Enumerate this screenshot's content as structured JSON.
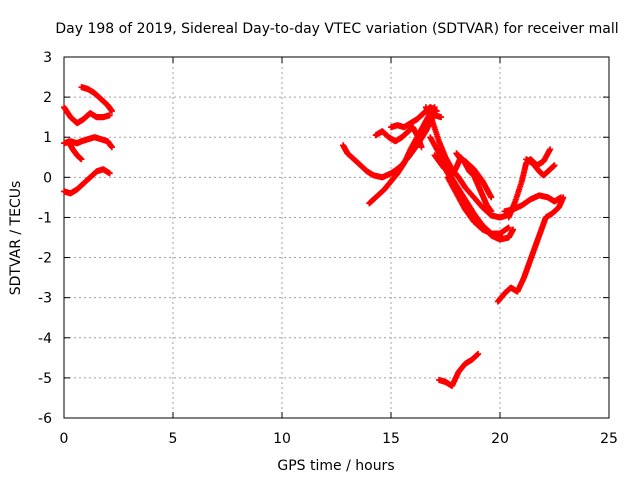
{
  "chart_data": {
    "type": "scatter",
    "title": "Day 198 of 2019, Sidereal Day-to-day VTEC variation (SDTVAR) for receiver mall",
    "xlabel": "GPS time / hours",
    "ylabel": "SDTVAR / TECUs",
    "xlim": [
      0,
      25
    ],
    "ylim": [
      -6,
      3
    ],
    "xticks": [
      "0",
      "5",
      "10",
      "15",
      "20",
      "25"
    ],
    "yticks": [
      "3",
      "2",
      "1",
      "0",
      "-1",
      "-2",
      "-3",
      "-4",
      "-5",
      "-6"
    ],
    "grid": true,
    "marker": "plus",
    "series": [
      {
        "name": "SDTVAR",
        "color": "#ff0000",
        "tracks": [
          {
            "x": [
              0.0,
              0.3,
              0.6,
              0.9,
              1.2,
              1.5,
              1.8,
              2.1
            ],
            "y": [
              1.75,
              1.5,
              1.35,
              1.45,
              1.6,
              1.5,
              1.5,
              1.55
            ]
          },
          {
            "x": [
              0.8,
              1.1,
              1.4,
              1.7,
              2.0,
              2.2
            ],
            "y": [
              2.25,
              2.2,
              2.1,
              1.95,
              1.8,
              1.65
            ]
          },
          {
            "x": [
              0.0,
              0.3,
              0.6,
              0.8,
              1.1,
              1.4,
              1.7,
              2.0,
              2.2
            ],
            "y": [
              0.85,
              0.9,
              0.85,
              0.9,
              0.95,
              1.0,
              0.95,
              0.9,
              0.75
            ]
          },
          {
            "x": [
              0.2,
              0.4,
              0.6,
              0.8
            ],
            "y": [
              0.9,
              0.7,
              0.55,
              0.45
            ]
          },
          {
            "x": [
              0.0,
              0.3,
              0.6,
              0.9,
              1.2,
              1.5,
              1.8,
              2.1
            ],
            "y": [
              -0.35,
              -0.4,
              -0.3,
              -0.15,
              0.0,
              0.15,
              0.2,
              0.1
            ]
          },
          {
            "x": [
              12.8,
              13.0,
              13.3,
              13.6,
              13.9,
              14.2,
              14.6,
              15.0,
              15.4,
              15.8,
              16.2,
              16.6,
              16.8,
              17.0,
              17.3
            ],
            "y": [
              0.8,
              0.6,
              0.45,
              0.3,
              0.15,
              0.05,
              0.0,
              0.1,
              0.25,
              0.5,
              0.8,
              1.15,
              1.4,
              1.55,
              1.5
            ]
          },
          {
            "x": [
              14.0,
              14.3,
              14.7,
              15.0,
              15.3,
              15.6,
              15.9,
              16.2,
              16.5,
              16.8,
              17.0
            ],
            "y": [
              -0.65,
              -0.5,
              -0.3,
              -0.1,
              0.1,
              0.35,
              0.7,
              1.0,
              1.3,
              1.6,
              1.75
            ]
          },
          {
            "x": [
              14.3,
              14.6,
              14.9,
              15.2,
              15.5,
              15.8,
              16.0,
              16.2,
              16.4
            ],
            "y": [
              1.05,
              1.15,
              1.0,
              0.9,
              1.0,
              1.15,
              1.25,
              1.05,
              0.75
            ]
          },
          {
            "x": [
              15.0,
              15.3,
              15.6,
              15.9,
              16.2,
              16.5,
              16.8,
              17.1
            ],
            "y": [
              1.25,
              1.3,
              1.25,
              1.35,
              1.45,
              1.6,
              1.75,
              1.65
            ]
          },
          {
            "x": [
              16.6,
              16.9,
              17.2,
              17.5,
              17.8,
              18.1,
              18.4,
              18.8,
              19.2,
              19.6,
              20.0,
              20.3,
              20.5
            ],
            "y": [
              1.75,
              1.4,
              0.9,
              0.5,
              0.2,
              0.0,
              -0.25,
              -0.5,
              -0.75,
              -0.95,
              -1.0,
              -0.95,
              -0.85
            ]
          },
          {
            "x": [
              16.8,
              17.2,
              17.6,
              18.0,
              18.4,
              18.8,
              19.2,
              19.6,
              20.0
            ],
            "y": [
              1.0,
              0.6,
              0.15,
              -0.2,
              -0.55,
              -0.9,
              -1.2,
              -1.4,
              -1.45
            ]
          },
          {
            "x": [
              17.2,
              17.6,
              18.0,
              18.4,
              18.8,
              19.2,
              19.6,
              20.0,
              20.4,
              20.6
            ],
            "y": [
              0.5,
              0.1,
              -0.3,
              -0.65,
              -0.95,
              -1.2,
              -1.45,
              -1.55,
              -1.5,
              -1.3
            ]
          },
          {
            "x": [
              17.6,
              18.0,
              18.4,
              18.8,
              19.2,
              19.6,
              20.0,
              20.4
            ],
            "y": [
              0.0,
              -0.4,
              -0.8,
              -1.1,
              -1.3,
              -1.4,
              -1.4,
              -1.25
            ]
          },
          {
            "x": [
              17.0,
              17.4,
              17.8,
              18.0,
              18.2,
              18.4,
              18.6,
              18.8,
              19.0,
              19.2,
              19.4,
              19.6
            ],
            "y": [
              0.55,
              0.25,
              0.05,
              0.25,
              0.5,
              0.35,
              0.15,
              0.05,
              -0.2,
              -0.45,
              -0.7,
              -0.85
            ]
          },
          {
            "x": [
              18.0,
              18.2,
              18.4,
              18.6,
              18.8,
              19.0,
              19.2,
              19.4,
              19.6
            ],
            "y": [
              0.6,
              0.45,
              0.4,
              0.3,
              0.2,
              0.05,
              -0.1,
              -0.3,
              -0.5
            ]
          },
          {
            "x": [
              20.4,
              20.7,
              21.0,
              21.2,
              21.4,
              21.7,
              22.0,
              22.3
            ],
            "y": [
              -1.0,
              -0.6,
              -0.1,
              0.35,
              0.45,
              0.3,
              0.4,
              0.7
            ]
          },
          {
            "x": [
              21.2,
              21.5,
              21.8,
              22.0,
              22.3,
              22.5
            ],
            "y": [
              0.45,
              0.35,
              0.15,
              0.05,
              0.2,
              0.3
            ]
          },
          {
            "x": [
              20.2,
              20.6,
              21.0,
              21.4,
              21.8,
              22.2,
              22.5,
              22.8
            ],
            "y": [
              -0.85,
              -0.8,
              -0.7,
              -0.55,
              -0.45,
              -0.5,
              -0.6,
              -0.5
            ]
          },
          {
            "x": [
              19.9,
              20.2,
              20.5,
              20.8,
              21.1,
              21.3,
              21.5,
              21.7,
              21.9,
              22.1,
              22.4,
              22.7,
              22.9
            ],
            "y": [
              -3.1,
              -2.9,
              -2.75,
              -2.85,
              -2.5,
              -2.2,
              -1.9,
              -1.6,
              -1.3,
              -1.0,
              -0.9,
              -0.75,
              -0.5
            ]
          },
          {
            "x": [
              17.2,
              17.5,
              17.8,
              18.1,
              18.4,
              18.7,
              19.0
            ],
            "y": [
              -5.05,
              -5.1,
              -5.2,
              -4.85,
              -4.65,
              -4.55,
              -4.4
            ]
          }
        ]
      }
    ]
  }
}
